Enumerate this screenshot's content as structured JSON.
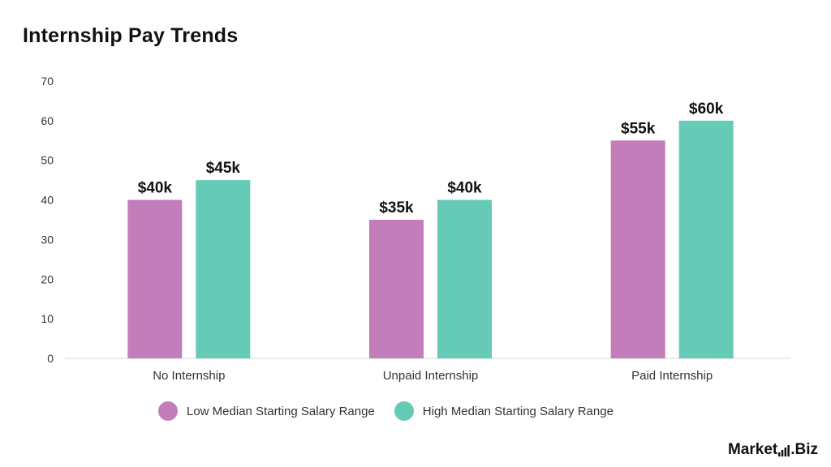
{
  "chart_data": {
    "type": "bar",
    "title": "Internship Pay Trends",
    "categories": [
      "No Internship",
      "Unpaid Internship",
      "Paid Internship"
    ],
    "series": [
      {
        "name": "Low Median Starting Salary Range",
        "color": "#c27dba",
        "values": [
          40,
          35,
          55
        ],
        "labels": [
          "$40k",
          "$35k",
          "$55k"
        ]
      },
      {
        "name": "High Median Starting Salary Range",
        "color": "#66cbb6",
        "values": [
          45,
          40,
          60
        ],
        "labels": [
          "$45k",
          "$40k",
          "$60k"
        ]
      }
    ],
    "ylim": [
      0,
      70
    ],
    "yticks": [
      0,
      10,
      20,
      30,
      40,
      50,
      60,
      70
    ],
    "xlabel": "",
    "ylabel": "",
    "grid": false,
    "legend_position": "bottom"
  },
  "branding": {
    "logo_text": "Market.Biz",
    "logo_part1": "Market",
    "logo_part2": ".Biz"
  }
}
